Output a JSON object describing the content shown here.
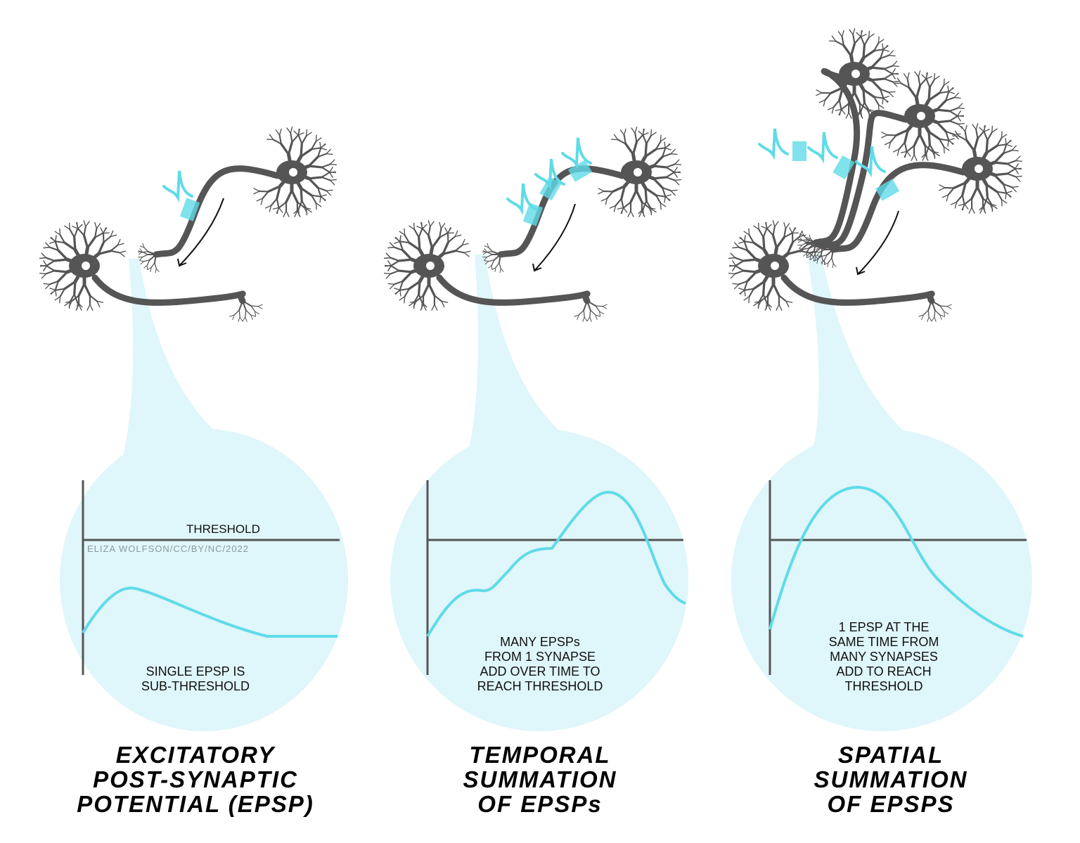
{
  "threshold_label": "THRESHOLD",
  "credit": "ELIZA WOLFSON/CC/BY/NC/2022",
  "panels": [
    {
      "caption": [
        "SINGLE EPSP IS",
        "SUB-THRESHOLD"
      ],
      "title": [
        "EXCITATORY",
        "POST-SYNAPTIC",
        "POTENTIAL (EPSP)"
      ]
    },
    {
      "caption": [
        "MANY EPSPs",
        "FROM 1 SYNAPSE",
        "ADD OVER TIME TO",
        "REACH THRESHOLD"
      ],
      "title": [
        "TEMPORAL",
        "SUMMATION",
        "OF EPSPs"
      ]
    },
    {
      "caption": [
        "1 EPSP AT THE",
        "SAME TIME FROM",
        "MANY SYNAPSES",
        "ADD TO REACH",
        "THRESHOLD"
      ],
      "title": [
        "SPATIAL",
        "SUMMATION",
        "OF EPSPS"
      ]
    }
  ]
}
